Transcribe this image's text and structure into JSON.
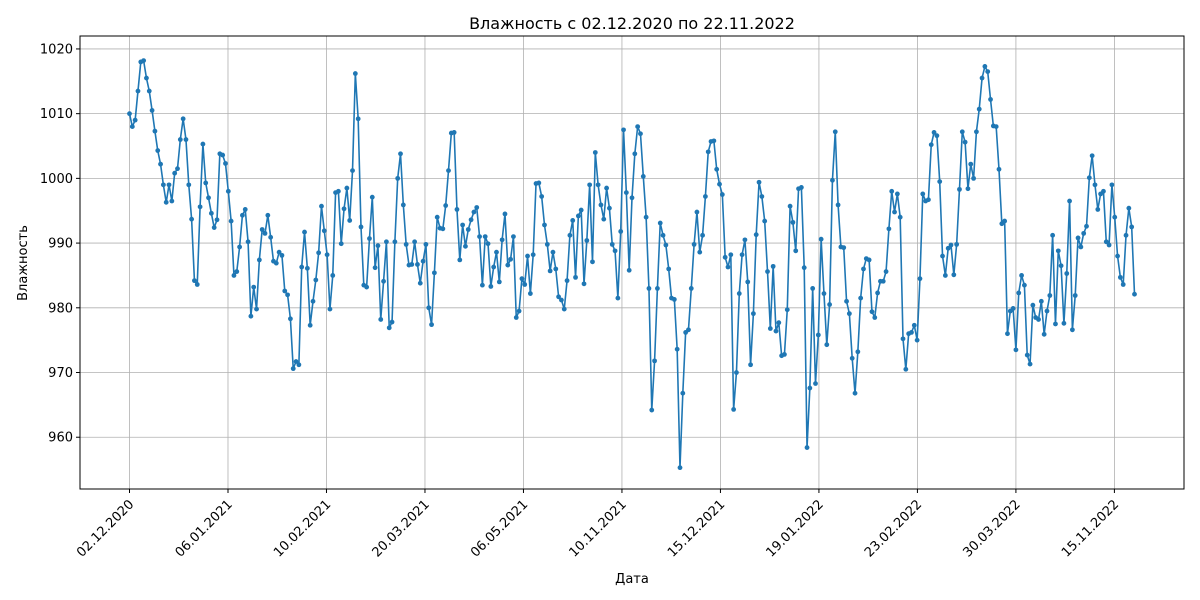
{
  "chart_data": {
    "type": "line",
    "title": "Влажность с 02.12.2020 по 22.11.2022",
    "xlabel": "Дата",
    "ylabel": "Влажность",
    "x_tick_labels": [
      "02.12.2020",
      "06.01.2021",
      "10.02.2021",
      "20.03.2021",
      "06.05.2021",
      "10.11.2021",
      "15.12.2021",
      "19.01.2022",
      "23.02.2022",
      "30.03.2022",
      "15.11.2022"
    ],
    "y_ticks": [
      960,
      970,
      980,
      990,
      1000,
      1010,
      1020
    ],
    "ylim": [
      952,
      1022
    ],
    "grid": true,
    "color": "#1f77b4",
    "series": [
      {
        "values": [
          1010.0,
          1008.0,
          1009.0,
          1013.5,
          1018.0,
          1018.2,
          1015.5,
          1013.5,
          1010.5,
          1007.3,
          1004.3,
          1002.2,
          999.0,
          996.3,
          999.0,
          996.5,
          1000.8,
          1001.5,
          1006.0,
          1009.2,
          1006.0,
          999.0,
          993.7,
          984.2,
          983.6,
          995.6,
          1005.3,
          999.3,
          997.0,
          994.6,
          992.4,
          993.6,
          1003.8,
          1003.6,
          1002.3,
          998.0,
          993.4,
          985.0,
          985.6,
          989.4,
          994.3,
          995.2,
          990.2,
          978.7,
          983.2,
          979.8,
          987.4,
          992.1,
          991.5,
          994.3,
          990.9,
          987.2,
          986.9,
          988.6,
          988.1,
          982.6,
          982.0,
          978.3,
          970.6,
          971.7,
          971.2,
          986.3,
          991.7,
          986.1,
          977.3,
          981.0,
          984.3,
          988.5,
          995.7,
          991.9,
          988.2,
          979.8,
          985.0,
          997.8,
          998.0,
          989.9,
          995.3,
          998.5,
          993.5,
          1001.2,
          1016.2,
          1009.2,
          992.5,
          983.5,
          983.2,
          990.7,
          997.1,
          986.2,
          989.6,
          978.2,
          984.1,
          990.2,
          976.9,
          977.8,
          990.2,
          1000.0,
          1003.8,
          995.9,
          989.8,
          986.6,
          986.7,
          990.2,
          986.7,
          983.8,
          987.2,
          989.8,
          980.0,
          977.4,
          985.4,
          994.0,
          992.3,
          992.2,
          995.8,
          1001.2,
          1007.0,
          1007.1,
          995.2,
          987.4,
          992.8,
          989.5,
          992.1,
          993.6,
          994.8,
          995.5,
          991.0,
          983.5,
          991.0,
          989.9,
          983.3,
          986.3,
          988.6,
          984.0,
          990.5,
          994.5,
          986.6,
          987.5,
          991.0,
          978.5,
          979.5,
          984.5,
          983.6,
          988.0,
          982.2,
          988.2,
          999.2,
          999.3,
          997.2,
          992.8,
          989.8,
          985.7,
          988.6,
          986.0,
          981.7,
          981.2,
          979.8,
          984.2,
          991.2,
          993.5,
          984.7,
          994.2,
          995.1,
          983.7,
          990.4,
          999.0,
          987.1,
          1004.0,
          999.0,
          995.9,
          993.7,
          998.5,
          995.4,
          989.8,
          988.8,
          981.5,
          991.8,
          1007.5,
          997.8,
          985.8,
          997.0,
          1003.8,
          1008.0,
          1006.9,
          1000.3,
          994.0,
          983.0,
          964.2,
          971.8,
          983.0,
          993.1,
          991.2,
          989.7,
          986.0,
          981.5,
          981.3,
          973.6,
          955.3,
          966.8,
          976.2,
          976.6,
          983.0,
          989.8,
          994.8,
          988.6,
          991.2,
          997.2,
          1004.1,
          1005.7,
          1005.8,
          1001.4,
          999.1,
          997.5,
          987.8,
          986.3,
          988.2,
          964.3,
          970.0,
          982.2,
          988.2,
          990.5,
          984.0,
          971.2,
          979.1,
          991.3,
          999.4,
          997.2,
          993.4,
          985.6,
          976.8,
          986.4,
          976.4,
          977.7,
          972.6,
          972.8,
          979.7,
          995.7,
          993.2,
          988.8,
          998.4,
          998.6,
          986.2,
          958.4,
          967.6,
          983.0,
          968.3,
          975.8,
          990.6,
          982.2,
          974.3,
          980.5,
          999.7,
          1007.2,
          995.9,
          989.4,
          989.3,
          981.0,
          979.1,
          972.2,
          966.8,
          973.2,
          981.5,
          986.0,
          987.6,
          987.4,
          979.4,
          978.5,
          982.3,
          984.1,
          984.1,
          985.6,
          992.2,
          998.0,
          994.8,
          997.6,
          994.0,
          975.2,
          970.5,
          976.0,
          976.2,
          977.3,
          975.0,
          984.5,
          997.6,
          996.5,
          996.7,
          1005.2,
          1007.1,
          1006.6,
          999.5,
          988.0,
          985.0,
          989.2,
          989.7,
          985.1,
          989.8,
          998.3,
          1007.2,
          1005.6,
          998.4,
          1002.2,
          1000.0,
          1007.2,
          1010.7,
          1015.5,
          1017.3,
          1016.5,
          1012.2,
          1008.1,
          1008.0,
          1001.4,
          993.0,
          993.4,
          976.0,
          979.5,
          979.9,
          973.5,
          982.3,
          985.0,
          983.5,
          972.7,
          971.3,
          980.4,
          978.5,
          978.2,
          981.0,
          975.9,
          979.5,
          981.9,
          991.2,
          977.5,
          988.8,
          986.5,
          977.6,
          985.3,
          996.5,
          976.6,
          981.9,
          990.8,
          989.4,
          991.5,
          992.6,
          1000.1,
          1003.5,
          999.0,
          995.2,
          997.6,
          998.0,
          990.2,
          989.7,
          999.0,
          994.0,
          988.0,
          984.7,
          983.6,
          991.2,
          995.4,
          992.5,
          982.1
        ]
      }
    ]
  }
}
